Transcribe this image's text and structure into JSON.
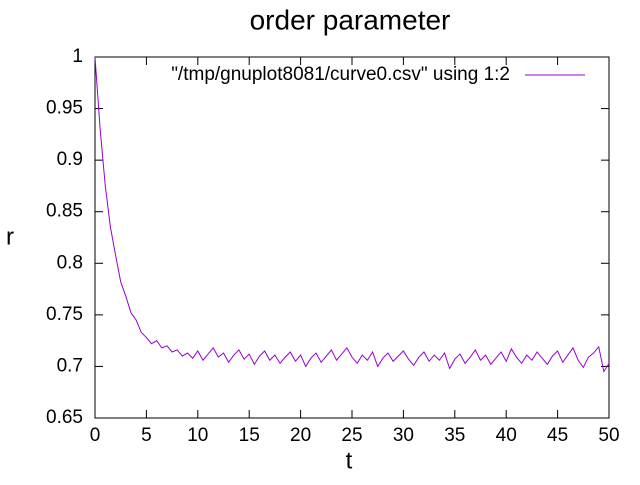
{
  "chart_data": {
    "type": "line",
    "title": "order parameter",
    "x_label": "t",
    "y_label": "r",
    "x": [
      0,
      0.5,
      1,
      1.5,
      2,
      2.5,
      3,
      3.5,
      4,
      4.5,
      5,
      5.5,
      6,
      6.5,
      7,
      7.5,
      8,
      8.5,
      9,
      9.5,
      10,
      10.5,
      11,
      11.5,
      12,
      12.5,
      13,
      13.5,
      14,
      14.5,
      15,
      15.5,
      16,
      16.5,
      17,
      17.5,
      18,
      18.5,
      19,
      19.5,
      20,
      20.5,
      21,
      21.5,
      22,
      22.5,
      23,
      23.5,
      24,
      24.5,
      25,
      25.5,
      26,
      26.5,
      27,
      27.5,
      28,
      28.5,
      29,
      29.5,
      30,
      30.5,
      31,
      31.5,
      32,
      32.5,
      33,
      33.5,
      34,
      34.5,
      35,
      35.5,
      36,
      36.5,
      37,
      37.5,
      38,
      38.5,
      39,
      39.5,
      40,
      40.5,
      41,
      41.5,
      42,
      42.5,
      43,
      43.5,
      44,
      44.5,
      45,
      45.5,
      46,
      46.5,
      47,
      47.5,
      48,
      48.5,
      49,
      49.5,
      50
    ],
    "series": [
      {
        "name": "\"/tmp/gnuplot8081/curve0.csv\" using 1:2",
        "color": "#9400d3",
        "values": [
          1.0,
          0.93,
          0.875,
          0.835,
          0.808,
          0.782,
          0.768,
          0.752,
          0.745,
          0.733,
          0.728,
          0.722,
          0.725,
          0.718,
          0.72,
          0.714,
          0.716,
          0.71,
          0.713,
          0.708,
          0.715,
          0.706,
          0.712,
          0.718,
          0.709,
          0.713,
          0.704,
          0.711,
          0.716,
          0.707,
          0.712,
          0.702,
          0.71,
          0.715,
          0.706,
          0.711,
          0.703,
          0.709,
          0.714,
          0.705,
          0.711,
          0.7,
          0.708,
          0.713,
          0.704,
          0.71,
          0.716,
          0.706,
          0.712,
          0.718,
          0.709,
          0.703,
          0.711,
          0.706,
          0.714,
          0.7,
          0.708,
          0.713,
          0.705,
          0.71,
          0.715,
          0.707,
          0.701,
          0.709,
          0.714,
          0.705,
          0.711,
          0.706,
          0.713,
          0.698,
          0.707,
          0.712,
          0.703,
          0.709,
          0.716,
          0.706,
          0.711,
          0.702,
          0.708,
          0.714,
          0.705,
          0.717,
          0.709,
          0.703,
          0.711,
          0.706,
          0.714,
          0.708,
          0.702,
          0.71,
          0.715,
          0.704,
          0.711,
          0.718,
          0.706,
          0.699,
          0.709,
          0.713,
          0.719,
          0.695,
          0.703
        ]
      }
    ],
    "xlim": [
      0,
      50
    ],
    "xticks": [
      0,
      5,
      10,
      15,
      20,
      25,
      30,
      35,
      40,
      45,
      50
    ],
    "ylim": [
      0.65,
      1
    ],
    "yticks": [
      0.65,
      0.7,
      0.75,
      0.8,
      0.85,
      0.9,
      0.95,
      1
    ],
    "legend": "top-right"
  }
}
